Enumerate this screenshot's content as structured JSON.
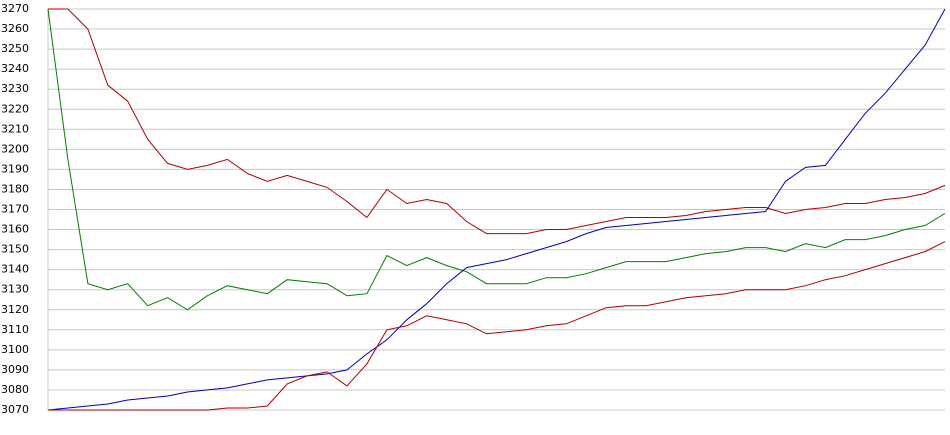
{
  "chart_data": {
    "type": "line",
    "categories": [
      null,
      null,
      null,
      null,
      null,
      null,
      null,
      null,
      null,
      null,
      null,
      null,
      null,
      null,
      null,
      null,
      null,
      null,
      null,
      null,
      null,
      null,
      null,
      null,
      null,
      null,
      null,
      null,
      null,
      null,
      null,
      null,
      null,
      null,
      null,
      null,
      null,
      null,
      null,
      null,
      null,
      null,
      null,
      null,
      null,
      null
    ],
    "series": [
      {
        "color": "#b00000",
        "values": [
          3270,
          3270,
          3260,
          3232,
          3224,
          3205,
          3193,
          3190,
          3192,
          3195,
          3188,
          3184,
          3187,
          3184,
          3181,
          3174,
          3166,
          3180,
          3173,
          3175,
          3173,
          3164,
          3158,
          3158,
          3158,
          3160,
          3160,
          3162,
          3164,
          3166,
          3166,
          3166,
          3167,
          3169,
          3170,
          3171,
          3171,
          3168,
          3170,
          3171,
          3173,
          3173,
          3175,
          3176,
          3178,
          3182
        ]
      },
      {
        "color": "#008000",
        "values": [
          3270,
          3195,
          3133,
          3130,
          3133,
          3122,
          3126,
          3120,
          3127,
          3132,
          3130,
          3128,
          3135,
          3134,
          3133,
          3127,
          3128,
          3147,
          3142,
          3146,
          3142,
          3139,
          3133,
          3133,
          3133,
          3136,
          3136,
          3138,
          3141,
          3144,
          3144,
          3144,
          3146,
          3148,
          3149,
          3151,
          3151,
          3149,
          3153,
          3151,
          3155,
          3155,
          3157,
          3160,
          3162,
          3168
        ]
      },
      {
        "color": "#0000c0",
        "values": [
          3070,
          3071,
          3072,
          3073,
          3075,
          3076,
          3077,
          3079,
          3080,
          3081,
          3083,
          3085,
          3086,
          3087,
          3088,
          3090,
          3098,
          3105,
          3115,
          3123,
          3133,
          3141,
          3143,
          3145,
          3148,
          3151,
          3154,
          3158,
          3161,
          3162,
          3163,
          3164,
          3165,
          3166,
          3167,
          3168,
          3169,
          3184,
          3191,
          3192,
          3205,
          3218,
          3228,
          3240,
          3252,
          3270
        ]
      },
      {
        "color": "#b00000",
        "values": [
          3070,
          3070,
          3070,
          3070,
          3070,
          3070,
          3070,
          3070,
          3070,
          3071,
          3071,
          3072,
          3083,
          3087,
          3089,
          3082,
          3093,
          3110,
          3112,
          3117,
          3115,
          3113,
          3108,
          3109,
          3110,
          3112,
          3113,
          3117,
          3121,
          3122,
          3122,
          3124,
          3126,
          3127,
          3128,
          3130,
          3130,
          3130,
          3132,
          3135,
          3137,
          3140,
          3143,
          3146,
          3149,
          3154
        ]
      }
    ],
    "ylim": [
      3070,
      3270
    ],
    "yticks": [
      3070,
      3080,
      3090,
      3100,
      3110,
      3120,
      3130,
      3140,
      3150,
      3160,
      3170,
      3180,
      3190,
      3200,
      3210,
      3220,
      3230,
      3240,
      3250,
      3260,
      3270
    ],
    "grid": true
  }
}
